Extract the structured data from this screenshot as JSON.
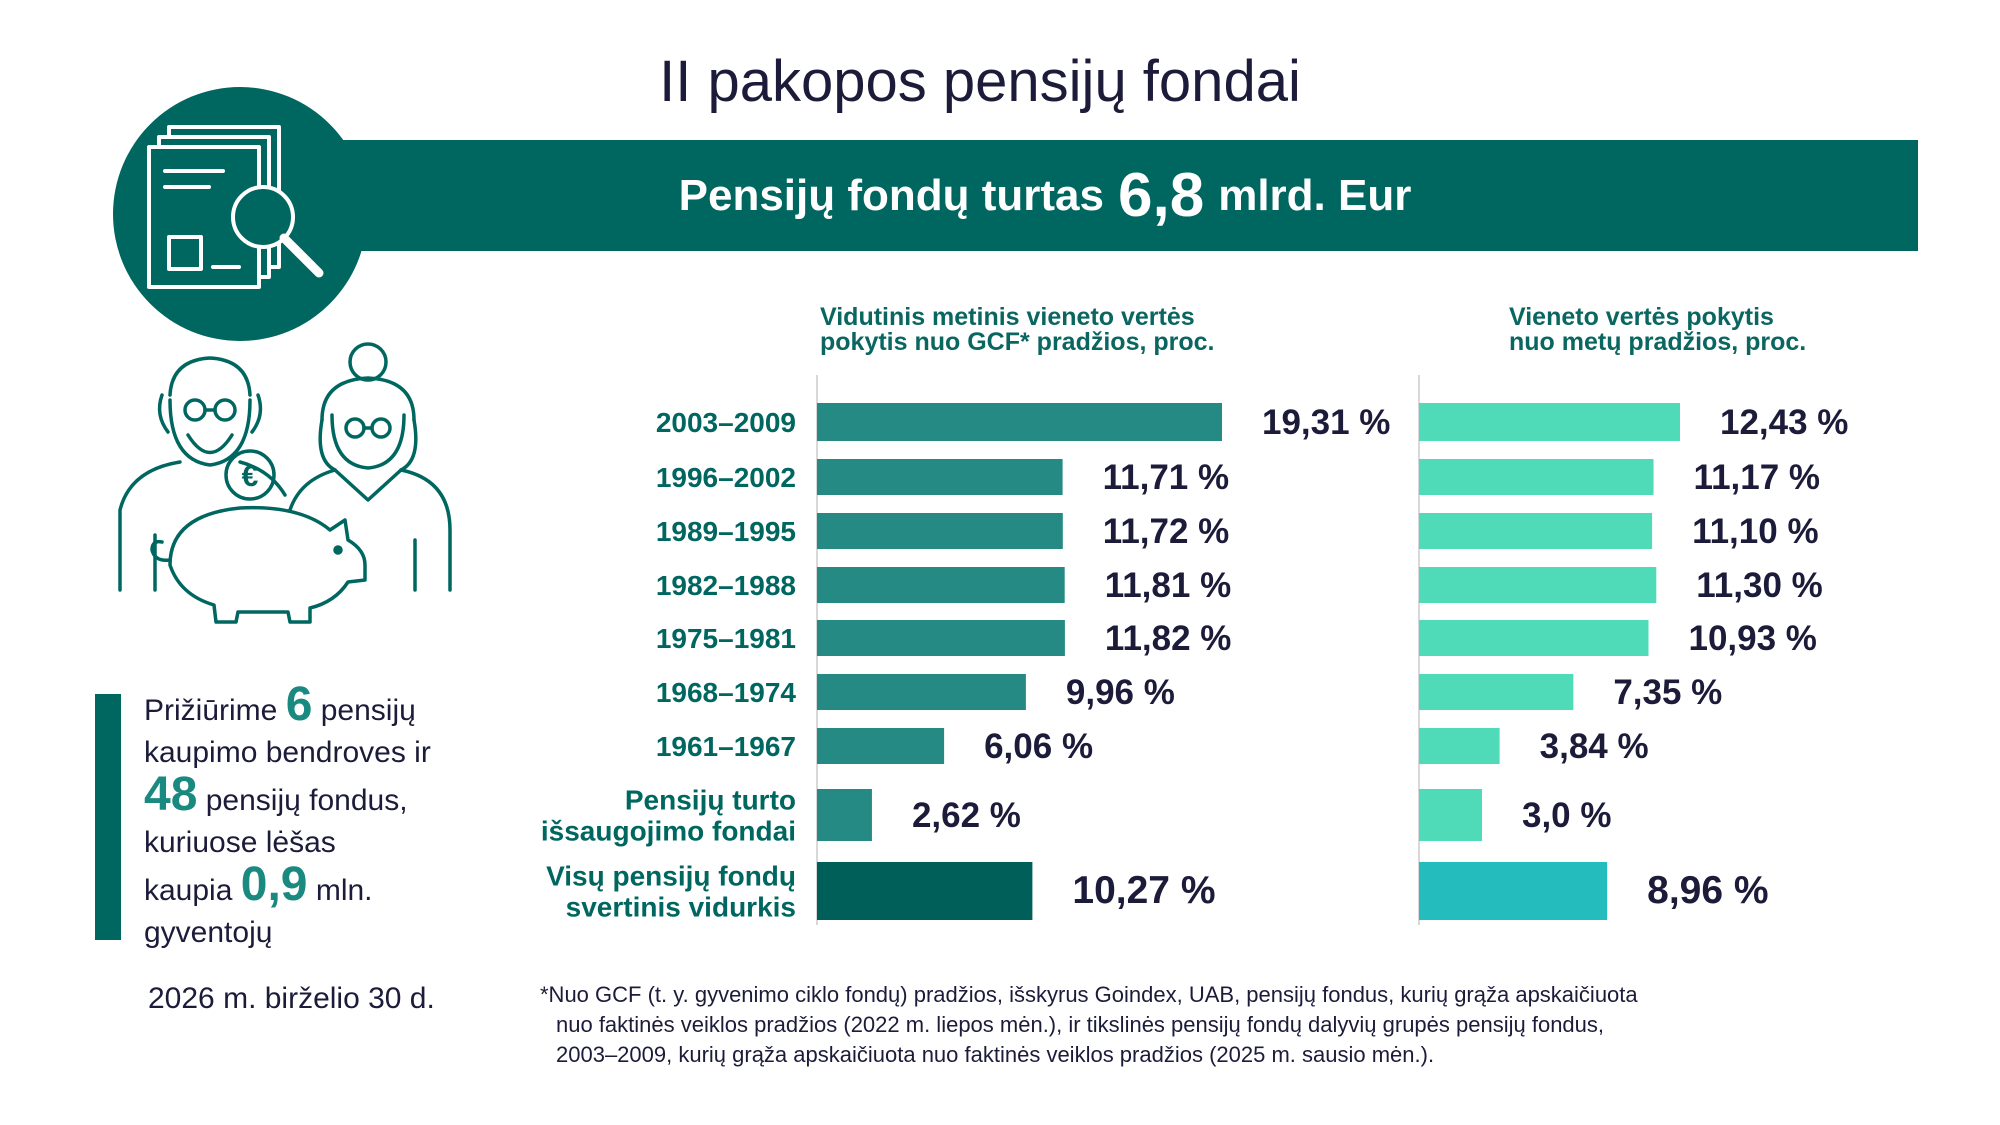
{
  "title": "II pakopos pensijų fondai",
  "banner": {
    "prefix": "Pensijų fondų turtas",
    "value": "6,8",
    "suffix": "mlrd. Eur"
  },
  "left_chart_title": [
    "Vidutinis metinis vieneto vertės",
    "pokytis nuo GCF* pradžios, proc."
  ],
  "right_chart_title": [
    "Vieneto vertės pokytis",
    "nuo metų pradžios, proc."
  ],
  "colors": {
    "dark": "#006660",
    "left_bar": "#268a84",
    "left_bar_total": "#005f59",
    "right_bar": "#4fdbb8",
    "right_bar_total": "#24bcbc",
    "text": "#1c1c3a"
  },
  "chart_data": {
    "type": "bar",
    "orientation": "horizontal",
    "categories": [
      [
        "2003–2009"
      ],
      [
        "1996–2002"
      ],
      [
        "1989–1995"
      ],
      [
        "1982–1988"
      ],
      [
        "1975–1981"
      ],
      [
        "1968–1974"
      ],
      [
        "1961–1967"
      ],
      [
        "Pensijų turto",
        "išsaugojimo fondai"
      ],
      [
        "Visų pensijų fondų",
        "svertinis vidurkis"
      ]
    ],
    "series": [
      {
        "name": "Vidutinis metinis vieneto vertės pokytis nuo GCF* pradžios, proc.",
        "values": [
          19.31,
          11.71,
          11.72,
          11.81,
          11.82,
          9.96,
          6.06,
          2.62,
          10.27
        ],
        "labels": [
          "19,31 %",
          "11,71 %",
          "11,72 %",
          "11,81 %",
          "11,82 %",
          "9,96 %",
          "6,06 %",
          "2,62 %",
          "10,27 %"
        ]
      },
      {
        "name": "Vieneto vertės pokytis nuo metų pradžios, proc.",
        "values": [
          12.43,
          11.17,
          11.1,
          11.3,
          10.93,
          7.35,
          3.84,
          3.0,
          8.96
        ],
        "labels": [
          "12,43 %",
          "11,17 %",
          "11,10 %",
          "11,30 %",
          "10,93 %",
          "7,35 %",
          "3,84 %",
          "3,0 %",
          "8,96 %"
        ]
      }
    ],
    "grid": false,
    "legend": "none"
  },
  "stats": {
    "line1": "Prižiūrime",
    "num1": "6",
    "line1b": "pensijų",
    "line2": "kaupimo bendroves ir",
    "num2": "48",
    "line3b": "pensijų fondus,",
    "line4": "kuriuose lėšas",
    "line5": "kaupia",
    "num3": "0,9",
    "line5b": "mln.",
    "line6": "gyventojų"
  },
  "date": "2026 m. birželio 30 d.",
  "footnote": [
    "*Nuo GCF (t. y. gyvenimo ciklo fondų) pradžios, išskyrus Goindex, UAB, pensijų fondus, kurių grąža apskaičiuota",
    "nuo faktinės veiklos pradžios (2022 m. liepos mėn.), ir tikslinės pensijų fondų dalyvių grupės pensijų fondus,",
    "2003–2009, kurių grąža apskaičiuota nuo faktinės veiklos pradžios (2025 m. sausio mėn.)."
  ]
}
